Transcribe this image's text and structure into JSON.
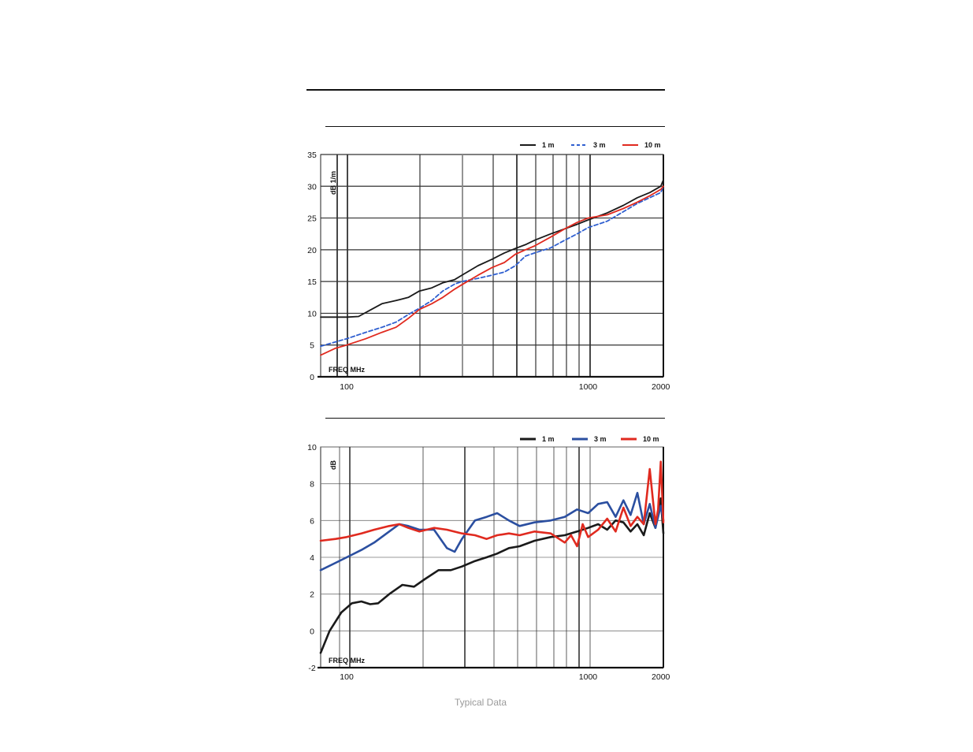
{
  "caption": "Typical Data",
  "colors": {
    "black": "#1a1a1a",
    "blue": "#2b4fa0",
    "blue_dashed": "#2f5fd0",
    "red": "#e02a1f"
  },
  "chart_data": [
    {
      "type": "line",
      "freq_label": "FREQ MHz",
      "ylabel": "dB 1/m",
      "xscale": "log",
      "xlim": [
        78,
        2050
      ],
      "ylim": [
        0,
        35
      ],
      "yticks": [
        0,
        5,
        10,
        15,
        20,
        25,
        30,
        35
      ],
      "xtick_labels": [
        {
          "value": 100,
          "label": "100"
        },
        {
          "value": 1000,
          "label": "1000"
        },
        {
          "value": 2000,
          "label": "2000"
        }
      ],
      "grid": true,
      "legend_position": "top-right",
      "series": [
        {
          "name": "1 m",
          "color": "#1a1a1a",
          "dash": "solid",
          "x": [
            78,
            90,
            100,
            112,
            125,
            140,
            160,
            180,
            200,
            225,
            250,
            280,
            300,
            350,
            400,
            450,
            500,
            550,
            600,
            700,
            800,
            900,
            1000,
            1200,
            1400,
            1600,
            1800,
            2000,
            2050
          ],
          "y": [
            9.4,
            9.4,
            9.4,
            9.5,
            10.5,
            11.5,
            12.0,
            12.5,
            13.5,
            14.0,
            14.8,
            15.3,
            16.0,
            17.5,
            18.5,
            19.5,
            20.2,
            20.8,
            21.5,
            22.5,
            23.3,
            24.0,
            24.7,
            25.8,
            27.0,
            28.2,
            29.0,
            30.0,
            31.0
          ]
        },
        {
          "name": "3 m",
          "color": "#2f5fd0",
          "dash": "dashed",
          "x": [
            78,
            90,
            100,
            120,
            140,
            160,
            180,
            200,
            225,
            250,
            280,
            300,
            350,
            400,
            450,
            500,
            550,
            600,
            700,
            800,
            900,
            1000,
            1200,
            1400,
            1600,
            1800,
            2000,
            2050
          ],
          "y": [
            4.8,
            5.5,
            6.0,
            7.0,
            7.8,
            8.6,
            9.8,
            10.8,
            12.0,
            13.5,
            14.6,
            15.0,
            15.5,
            16.0,
            16.5,
            17.5,
            19.0,
            19.5,
            20.3,
            21.5,
            22.5,
            23.5,
            24.5,
            26.0,
            27.3,
            28.2,
            29.0,
            30.0
          ]
        },
        {
          "name": "10 m",
          "color": "#e02a1f",
          "dash": "solid",
          "x": [
            78,
            90,
            100,
            120,
            140,
            160,
            180,
            200,
            225,
            250,
            280,
            300,
            350,
            400,
            450,
            500,
            550,
            600,
            700,
            800,
            900,
            1000,
            1200,
            1400,
            1600,
            1800,
            2000,
            2050
          ],
          "y": [
            3.4,
            4.5,
            5.0,
            6.0,
            7.0,
            7.8,
            9.2,
            10.6,
            11.5,
            12.5,
            13.8,
            14.5,
            16.0,
            17.2,
            18.0,
            19.3,
            20.0,
            20.6,
            22.0,
            23.3,
            24.3,
            25.0,
            25.5,
            26.5,
            27.5,
            28.5,
            29.5,
            30.0
          ]
        }
      ],
      "legend": [
        "1 m",
        "3 m",
        "10 m"
      ]
    },
    {
      "type": "line",
      "freq_label": "FREQ MHz",
      "ylabel": "dB",
      "xscale": "log",
      "xlim": [
        78,
        2050
      ],
      "ylim": [
        -2,
        10
      ],
      "yticks": [
        -2,
        0,
        2,
        4,
        6,
        8,
        10
      ],
      "xtick_labels": [
        {
          "value": 100,
          "label": "100"
        },
        {
          "value": 1000,
          "label": "1000"
        },
        {
          "value": 2000,
          "label": "2000"
        }
      ],
      "grid": true,
      "legend_position": "top-right",
      "series": [
        {
          "name": "1 m",
          "color": "#1a1a1a",
          "dash": "solid",
          "x": [
            78,
            85,
            95,
            105,
            115,
            125,
            135,
            150,
            170,
            190,
            210,
            240,
            270,
            300,
            340,
            380,
            420,
            470,
            520,
            600,
            700,
            800,
            900,
            1000,
            1100,
            1200,
            1300,
            1400,
            1500,
            1600,
            1700,
            1800,
            1900,
            2000,
            2050
          ],
          "y": [
            -1.2,
            0.0,
            1.0,
            1.5,
            1.6,
            1.45,
            1.5,
            2.0,
            2.5,
            2.4,
            2.8,
            3.3,
            3.3,
            3.5,
            3.8,
            4.0,
            4.2,
            4.5,
            4.6,
            4.9,
            5.1,
            5.2,
            5.4,
            5.6,
            5.8,
            5.5,
            6.0,
            5.9,
            5.4,
            5.8,
            5.2,
            6.4,
            5.6,
            7.2,
            5.3
          ]
        },
        {
          "name": "3 m",
          "color": "#2b4fa0",
          "dash": "solid",
          "x": [
            78,
            90,
            100,
            115,
            130,
            150,
            165,
            180,
            200,
            230,
            260,
            280,
            300,
            340,
            380,
            420,
            470,
            520,
            600,
            700,
            800,
            900,
            1000,
            1100,
            1200,
            1300,
            1400,
            1500,
            1600,
            1700,
            1800,
            1900,
            2000,
            2050
          ],
          "y": [
            3.3,
            3.7,
            4.0,
            4.4,
            4.8,
            5.4,
            5.8,
            5.7,
            5.5,
            5.5,
            4.5,
            4.3,
            5.0,
            6.0,
            6.2,
            6.4,
            6.0,
            5.7,
            5.9,
            6.0,
            6.2,
            6.6,
            6.4,
            6.9,
            7.0,
            6.2,
            7.1,
            6.3,
            7.5,
            5.8,
            6.9,
            5.6,
            6.8,
            6.0
          ]
        },
        {
          "name": "10 m",
          "color": "#e02a1f",
          "dash": "solid",
          "x": [
            78,
            90,
            100,
            115,
            130,
            150,
            165,
            180,
            200,
            230,
            260,
            300,
            340,
            380,
            420,
            470,
            520,
            600,
            700,
            800,
            850,
            900,
            950,
            1000,
            1100,
            1200,
            1300,
            1400,
            1500,
            1600,
            1700,
            1800,
            1900,
            1950,
            2000,
            2050
          ],
          "y": [
            4.9,
            5.0,
            5.1,
            5.3,
            5.5,
            5.7,
            5.8,
            5.6,
            5.4,
            5.6,
            5.5,
            5.3,
            5.2,
            5.0,
            5.2,
            5.3,
            5.2,
            5.4,
            5.3,
            4.8,
            5.2,
            4.6,
            5.8,
            5.1,
            5.5,
            6.1,
            5.4,
            6.7,
            5.7,
            6.2,
            5.8,
            8.8,
            5.8,
            6.6,
            9.2,
            5.9
          ]
        }
      ],
      "legend": [
        "1 m",
        "3 m",
        "10 m"
      ]
    }
  ]
}
